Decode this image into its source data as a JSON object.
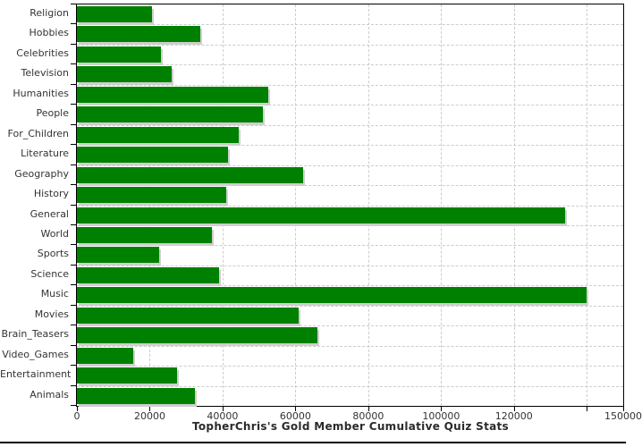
{
  "chart_data": {
    "type": "bar",
    "orientation": "horizontal",
    "title": "TopherChris's Gold Member Cumulative Quiz Stats",
    "categories": [
      "Religion",
      "Hobbies",
      "Celebrities",
      "Television",
      "Humanities",
      "People",
      "For_Children",
      "Literature",
      "Geography",
      "History",
      "General",
      "World",
      "Sports",
      "Science",
      "Music",
      "Movies",
      "Brain_Teasers",
      "Video_Games",
      "Entertainment",
      "Animals"
    ],
    "values": [
      20500,
      34000,
      23000,
      26000,
      52500,
      51000,
      44500,
      41500,
      62000,
      41000,
      134000,
      37000,
      22500,
      39000,
      140000,
      61000,
      66000,
      15500,
      27500,
      32500
    ],
    "xlim": [
      0,
      150000
    ],
    "x_ticks": [
      {
        "value": 0,
        "label": "0"
      },
      {
        "value": 20000,
        "label": "20000"
      },
      {
        "value": 40000,
        "label": "40000"
      },
      {
        "value": 60000,
        "label": "60000"
      },
      {
        "value": 80000,
        "label": "80000"
      },
      {
        "value": 100000,
        "label": "100000"
      },
      {
        "value": 120000,
        "label": "120000"
      },
      {
        "value": 140000,
        "label": ""
      },
      {
        "value": 150000,
        "label": "150000"
      }
    ],
    "grid": "dashed-both-directions",
    "legend": "none",
    "ylabel": "",
    "xlabel": ""
  },
  "colors": {
    "bar": "#008000",
    "bar_shadow": "#cfcfcf",
    "grid_line": "#cccccc",
    "axis": "#000000",
    "tick_text": "#333333",
    "title_text": "#2b2b2b",
    "background": "#ffffff",
    "bottom_border": "#000000"
  }
}
